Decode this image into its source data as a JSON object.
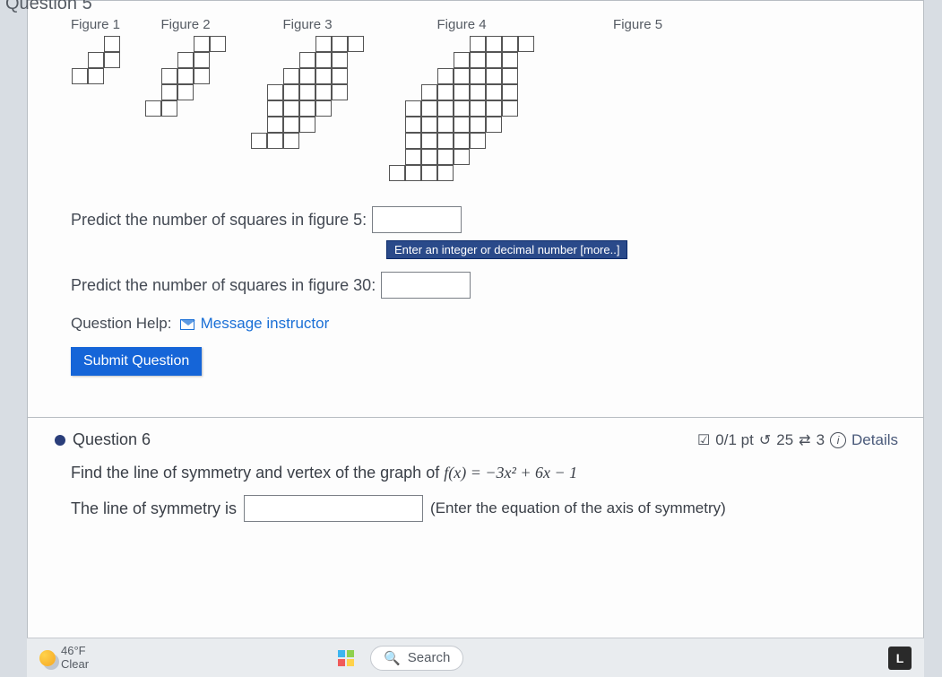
{
  "question5": {
    "header": "Question 5",
    "figures": {
      "f1": "Figure 1",
      "f2": "Figure 2",
      "f3": "Figure 3",
      "f4": "Figure 4",
      "f5": "Figure 5"
    },
    "prompt5": "Predict the number of squares in figure 5:",
    "prompt30": "Predict the number of squares in figure 30:",
    "tooltip": "Enter an integer or decimal number [more..]",
    "helpLabel": "Question Help:",
    "helpLink": "Message instructor",
    "submit": "Submit Question",
    "input5_value": "",
    "input30_value": ""
  },
  "question6": {
    "title": "Question 6",
    "score": "0/1 pt",
    "retries": "25",
    "attempts": "3",
    "details": "Details",
    "prompt_a": "Find the line of symmetry and vertex of the graph of ",
    "func": "f(x) = −3x² + 6x − 1",
    "sym_label": "The line of symmetry is",
    "sym_hint": "(Enter the equation of the axis of symmetry)",
    "sym_value": ""
  },
  "taskbar": {
    "temp": "46°F",
    "cond": "Clear",
    "search": "Search"
  },
  "colors": {
    "accent": "#1565d8",
    "tooltip_bg": "#2a4a8a",
    "cell_border": "#555555"
  }
}
